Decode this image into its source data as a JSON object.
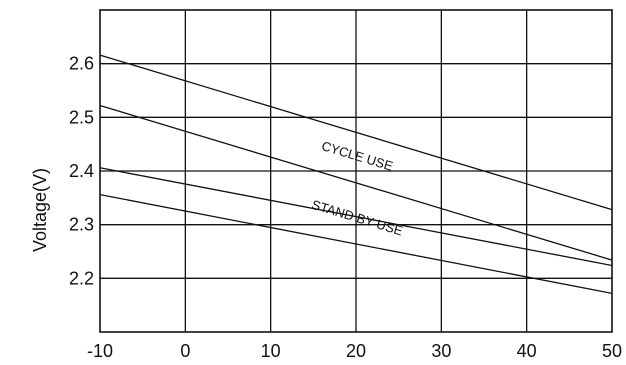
{
  "chart_data": {
    "type": "line",
    "title": "",
    "xlabel": "",
    "ylabel": "Voltage(V)",
    "xlim": [
      -10,
      50
    ],
    "ylim": [
      2.1,
      2.7
    ],
    "x_ticks": [
      "-10",
      "0",
      "10",
      "20",
      "30",
      "40",
      "50"
    ],
    "y_ticks": [
      "2.2",
      "2.3",
      "2.4",
      "2.5",
      "2.6"
    ],
    "grid": true,
    "series": [
      {
        "x": [
          -10,
          50
        ],
        "values": [
          2.616,
          2.328
        ]
      },
      {
        "x": [
          -10,
          50
        ],
        "values": [
          2.522,
          2.234
        ]
      },
      {
        "x": [
          -10,
          50
        ],
        "values": [
          2.406,
          2.224
        ]
      },
      {
        "x": [
          -10,
          50
        ],
        "values": [
          2.356,
          2.172
        ]
      }
    ],
    "annotations": [
      {
        "text": "CYCLE USE",
        "x": 20,
        "y": 2.42
      },
      {
        "text": "STAND BY USE",
        "x": 20,
        "y": 2.305
      }
    ]
  }
}
